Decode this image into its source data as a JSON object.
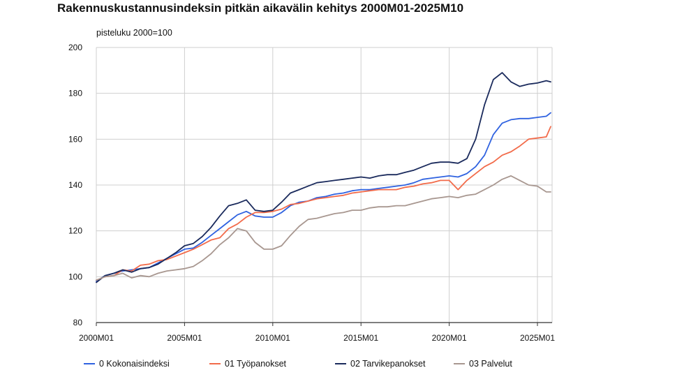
{
  "chart_data": {
    "type": "line",
    "title": "Rakennuskustannusindeksin pitkän aikavälin kehitys 2000M01-2025M10",
    "ylabel": "pisteluku 2000=100",
    "xlabel": "",
    "ylim": [
      80,
      200
    ],
    "yticks": [
      80,
      100,
      120,
      140,
      160,
      180,
      200
    ],
    "xlim": [
      2000.0,
      2025.83
    ],
    "xticks": [
      {
        "value": 2000.0,
        "label": "2000M01"
      },
      {
        "value": 2005.0,
        "label": "2005M01"
      },
      {
        "value": 2010.0,
        "label": "2010M01"
      },
      {
        "value": 2015.0,
        "label": "2015M01"
      },
      {
        "value": 2020.0,
        "label": "2020M01"
      },
      {
        "value": 2025.0,
        "label": "2025M01"
      }
    ],
    "grid": true,
    "legend_position": "bottom",
    "series": [
      {
        "name": "0 Kokonaisindeksi",
        "color": "#2f62e0",
        "x": [
          2000.0,
          2000.5,
          2001.0,
          2001.5,
          2002.0,
          2002.5,
          2003.0,
          2003.5,
          2004.0,
          2004.5,
          2005.0,
          2005.5,
          2006.0,
          2006.5,
          2007.0,
          2007.5,
          2008.0,
          2008.5,
          2009.0,
          2009.5,
          2010.0,
          2010.5,
          2011.0,
          2011.5,
          2012.0,
          2012.5,
          2013.0,
          2013.5,
          2014.0,
          2014.5,
          2015.0,
          2015.5,
          2016.0,
          2016.5,
          2017.0,
          2017.5,
          2018.0,
          2018.5,
          2019.0,
          2019.5,
          2020.0,
          2020.5,
          2021.0,
          2021.5,
          2022.0,
          2022.5,
          2023.0,
          2023.5,
          2024.0,
          2024.5,
          2025.0,
          2025.5,
          2025.75
        ],
        "values": [
          98,
          100.5,
          101.5,
          102.5,
          103,
          103.5,
          104,
          106,
          108,
          110,
          112,
          112.5,
          115,
          118,
          121,
          124,
          127,
          128.5,
          126.5,
          126,
          126,
          128,
          131,
          132.5,
          133,
          134.5,
          135,
          136,
          136.5,
          137.5,
          138,
          138,
          138.5,
          139,
          139.5,
          140,
          141,
          142.5,
          143,
          143.5,
          144,
          143.5,
          145,
          148,
          153,
          162,
          167,
          168.5,
          169,
          169,
          169.5,
          170,
          171.5
        ]
      },
      {
        "name": "01 Työpanokset",
        "color": "#f26b4a",
        "x": [
          2000.0,
          2000.5,
          2001.0,
          2001.5,
          2002.0,
          2002.5,
          2003.0,
          2003.5,
          2004.0,
          2004.5,
          2005.0,
          2005.5,
          2006.0,
          2006.5,
          2007.0,
          2007.5,
          2008.0,
          2008.5,
          2009.0,
          2009.5,
          2010.0,
          2010.5,
          2011.0,
          2011.5,
          2012.0,
          2012.5,
          2013.0,
          2013.5,
          2014.0,
          2014.5,
          2015.0,
          2015.5,
          2016.0,
          2016.5,
          2017.0,
          2017.5,
          2018.0,
          2018.5,
          2019.0,
          2019.5,
          2020.0,
          2020.5,
          2021.0,
          2021.5,
          2022.0,
          2022.5,
          2023.0,
          2023.5,
          2024.0,
          2024.5,
          2025.0,
          2025.5,
          2025.75
        ],
        "values": [
          98.5,
          100,
          100.5,
          103,
          102.5,
          105,
          105.5,
          107,
          107.5,
          109,
          110.5,
          112,
          114,
          116,
          117,
          121,
          123,
          126,
          128,
          128,
          128.5,
          129.5,
          131.5,
          132,
          133,
          134,
          134.5,
          135,
          135.5,
          136.5,
          137,
          137.5,
          138,
          138,
          138,
          139,
          139.5,
          140.5,
          141,
          142,
          142,
          138,
          142,
          145,
          148,
          150,
          153,
          154.5,
          157,
          160,
          160.5,
          161,
          165.5
        ]
      },
      {
        "name": "02 Tarvikepanokset",
        "color": "#1a2a5c",
        "x": [
          2000.0,
          2000.5,
          2001.0,
          2001.5,
          2002.0,
          2002.5,
          2003.0,
          2003.5,
          2004.0,
          2004.5,
          2005.0,
          2005.5,
          2006.0,
          2006.5,
          2007.0,
          2007.5,
          2008.0,
          2008.5,
          2009.0,
          2009.5,
          2010.0,
          2010.5,
          2011.0,
          2011.5,
          2012.0,
          2012.5,
          2013.0,
          2013.5,
          2014.0,
          2014.5,
          2015.0,
          2015.5,
          2016.0,
          2016.5,
          2017.0,
          2017.5,
          2018.0,
          2018.5,
          2019.0,
          2019.5,
          2020.0,
          2020.5,
          2021.0,
          2021.5,
          2022.0,
          2022.5,
          2023.0,
          2023.5,
          2024.0,
          2024.5,
          2025.0,
          2025.5,
          2025.75
        ],
        "values": [
          97.5,
          100.5,
          101.5,
          103,
          102,
          103.5,
          104,
          105.5,
          108,
          110.5,
          113.5,
          114.5,
          117.5,
          121.5,
          126.5,
          131,
          132,
          133.5,
          129,
          128.5,
          129,
          132.5,
          136.5,
          138,
          139.5,
          141,
          141.5,
          142,
          142.5,
          143,
          143.5,
          143,
          144,
          144.5,
          144.5,
          145.5,
          146.5,
          148,
          149.5,
          150,
          150,
          149.5,
          151.5,
          160,
          175,
          186,
          189,
          185,
          183,
          184,
          184.5,
          185.5,
          185
        ]
      },
      {
        "name": "03 Palvelut",
        "color": "#a89790",
        "x": [
          2000.0,
          2000.5,
          2001.0,
          2001.5,
          2002.0,
          2002.5,
          2003.0,
          2003.5,
          2004.0,
          2004.5,
          2005.0,
          2005.5,
          2006.0,
          2006.5,
          2007.0,
          2007.5,
          2008.0,
          2008.5,
          2009.0,
          2009.5,
          2010.0,
          2010.5,
          2011.0,
          2011.5,
          2012.0,
          2012.5,
          2013.0,
          2013.5,
          2014.0,
          2014.5,
          2015.0,
          2015.5,
          2016.0,
          2016.5,
          2017.0,
          2017.5,
          2018.0,
          2018.5,
          2019.0,
          2019.5,
          2020.0,
          2020.5,
          2021.0,
          2021.5,
          2022.0,
          2022.5,
          2023.0,
          2023.5,
          2024.0,
          2024.5,
          2025.0,
          2025.5,
          2025.75
        ],
        "values": [
          98.5,
          100,
          100.5,
          101.5,
          99.5,
          100.5,
          100,
          101.5,
          102.5,
          103,
          103.5,
          104.5,
          107,
          110,
          114,
          117,
          121,
          120,
          115,
          112,
          112,
          113.5,
          118,
          122,
          125,
          125.5,
          126.5,
          127.5,
          128,
          129,
          129,
          130,
          130.5,
          130.5,
          131,
          131,
          132,
          133,
          134,
          134.5,
          135,
          134.5,
          135.5,
          136,
          138,
          140,
          142.5,
          144,
          142,
          140,
          139.5,
          137,
          137
        ]
      }
    ]
  }
}
